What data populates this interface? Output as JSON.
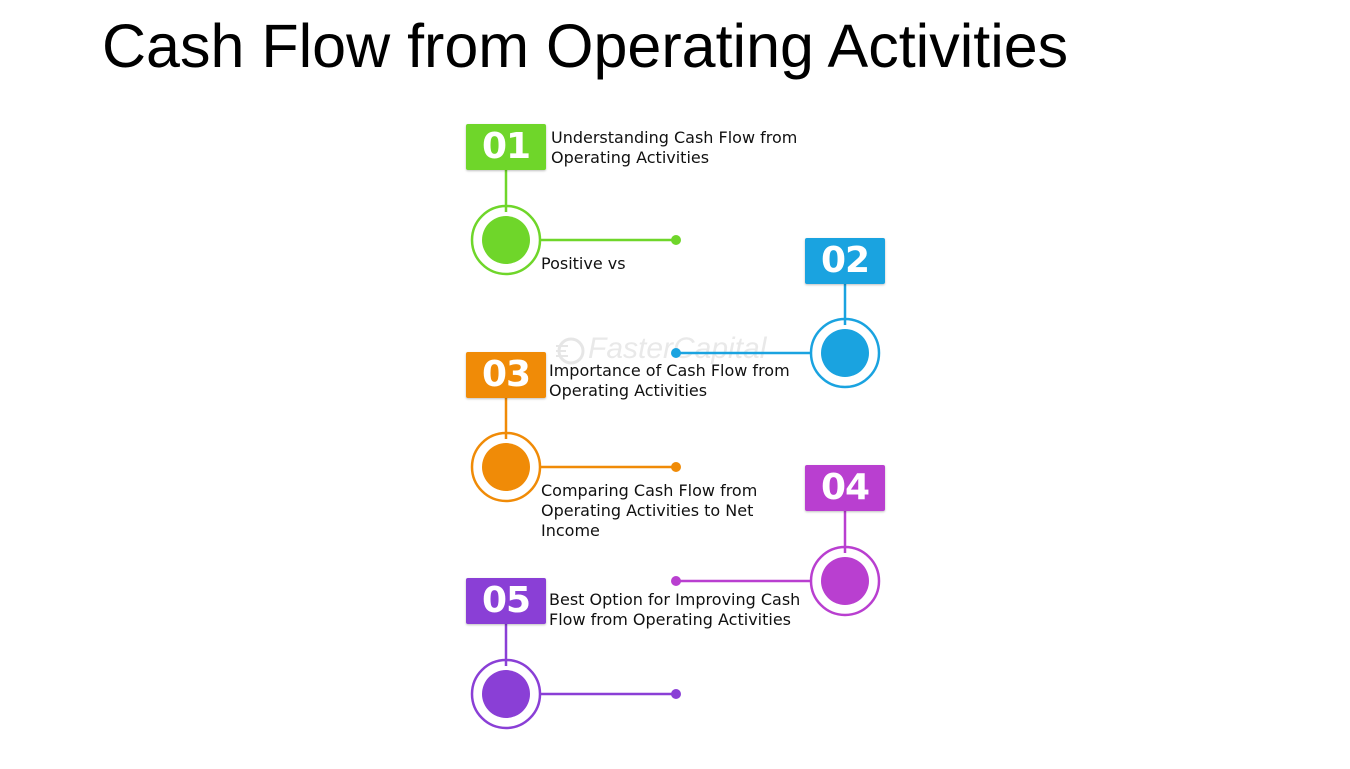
{
  "title": "Cash Flow from Operating Activities",
  "watermark": "FasterCapital",
  "steps": [
    {
      "number": "01",
      "label": "Understanding Cash Flow from Operating Activities",
      "color": "#6fd62a",
      "icon": "numbered-badge"
    },
    {
      "number": "02",
      "label": "Positive vs",
      "color": "#1aa3e0",
      "icon": "numbered-badge"
    },
    {
      "number": "03",
      "label": "Importance of Cash Flow from Operating Activities",
      "color": "#f08b07",
      "icon": "numbered-badge"
    },
    {
      "number": "04",
      "label": "Comparing Cash Flow from Operating Activities to Net Income",
      "color": "#b93fd0",
      "icon": "numbered-badge"
    },
    {
      "number": "05",
      "label": "Best Option for Improving Cash Flow from Operating Activities",
      "color": "#8a3fd6",
      "icon": "numbered-badge"
    }
  ]
}
